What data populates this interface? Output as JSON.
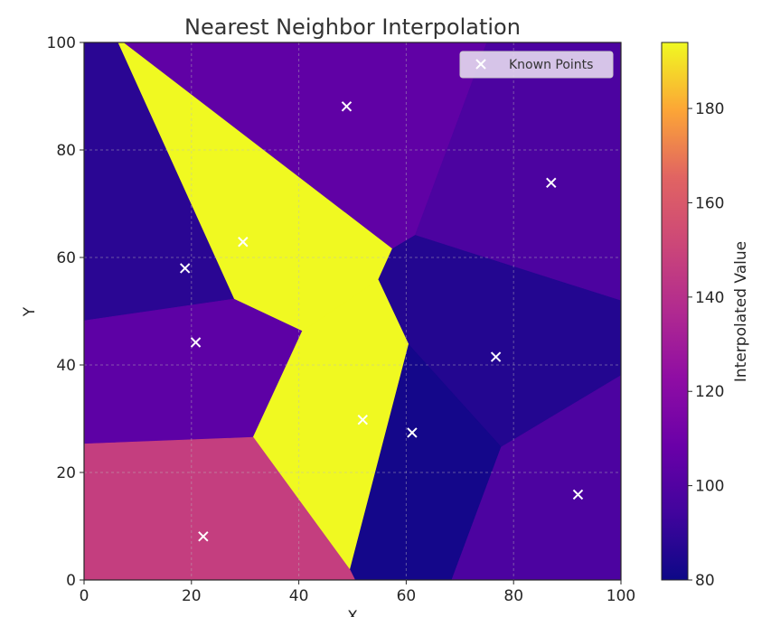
{
  "chart_data": {
    "type": "heatmap",
    "title": "Nearest Neighbor Interpolation",
    "xlabel": "X",
    "ylabel": "Y",
    "xlim": [
      0,
      100
    ],
    "ylim": [
      0,
      100
    ],
    "x_ticks": [
      0,
      20,
      40,
      60,
      80,
      100
    ],
    "y_ticks": [
      0,
      20,
      40,
      60,
      80,
      100
    ],
    "grid": true,
    "colormap": "plasma",
    "colorbar": {
      "label": "Interpolated Value",
      "range": [
        80,
        194
      ],
      "ticks": [
        80,
        100,
        120,
        140,
        160,
        180
      ]
    },
    "legend": {
      "position": "top-right",
      "entries": [
        "Known Points"
      ]
    },
    "known_points": [
      {
        "x": 48.9,
        "y": 88.1,
        "value": 105
      },
      {
        "x": 87.0,
        "y": 73.9,
        "value": 98
      },
      {
        "x": 29.6,
        "y": 62.9,
        "value": 194
      },
      {
        "x": 18.8,
        "y": 58.0,
        "value": 88
      },
      {
        "x": 20.8,
        "y": 44.2,
        "value": 104
      },
      {
        "x": 76.7,
        "y": 41.5,
        "value": 86
      },
      {
        "x": 51.9,
        "y": 29.8,
        "value": 194
      },
      {
        "x": 61.1,
        "y": 27.4,
        "value": 82
      },
      {
        "x": 92.0,
        "y": 15.9,
        "value": 98
      },
      {
        "x": 22.2,
        "y": 8.1,
        "value": 147
      }
    ]
  }
}
